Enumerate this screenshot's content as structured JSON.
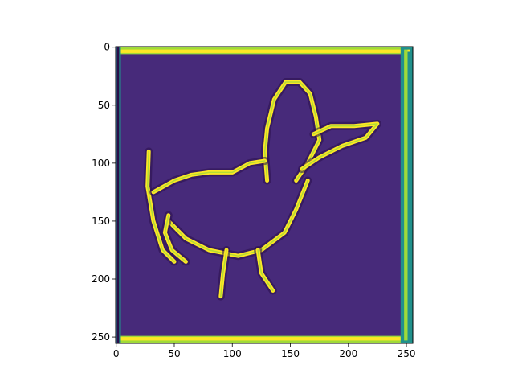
{
  "chart_data": {
    "type": "heatmap",
    "title": "",
    "xlabel": "",
    "ylabel": "",
    "xlim": [
      -0.5,
      255.5
    ],
    "ylim": [
      255.5,
      -0.5
    ],
    "xticks": [
      0,
      50,
      100,
      150,
      200,
      250
    ],
    "yticks": [
      0,
      50,
      100,
      150,
      200,
      250
    ],
    "colormap": "viridis",
    "colors": {
      "background": "#472a7a",
      "edge_high": "#fde725",
      "edge_mid": "#a0da39",
      "edge_teal": "#21918c",
      "edge_dark": "#2a0f4a"
    },
    "grid": false,
    "legend": "none",
    "description_strokes": [
      {
        "name": "head-and-neck",
        "points": [
          [
            130,
            115
          ],
          [
            128,
            90
          ],
          [
            130,
            70
          ],
          [
            136,
            45
          ],
          [
            146,
            30
          ],
          [
            158,
            30
          ],
          [
            167,
            40
          ],
          [
            172,
            60
          ],
          [
            175,
            80
          ],
          [
            165,
            100
          ],
          [
            155,
            115
          ]
        ]
      },
      {
        "name": "beak",
        "points": [
          [
            170,
            75
          ],
          [
            185,
            68
          ],
          [
            205,
            68
          ],
          [
            225,
            66
          ],
          [
            215,
            78
          ],
          [
            195,
            85
          ],
          [
            175,
            95
          ],
          [
            160,
            105
          ]
        ]
      },
      {
        "name": "tail-left",
        "points": [
          [
            28,
            90
          ],
          [
            27,
            120
          ],
          [
            32,
            150
          ],
          [
            40,
            175
          ],
          [
            50,
            185
          ]
        ]
      },
      {
        "name": "back-top",
        "points": [
          [
            32,
            125
          ],
          [
            50,
            115
          ],
          [
            65,
            110
          ],
          [
            80,
            108
          ],
          [
            100,
            108
          ],
          [
            115,
            100
          ],
          [
            128,
            98
          ]
        ]
      },
      {
        "name": "belly-inner",
        "points": [
          [
            45,
            150
          ],
          [
            60,
            165
          ],
          [
            80,
            175
          ],
          [
            105,
            180
          ],
          [
            125,
            175
          ],
          [
            145,
            160
          ],
          [
            155,
            140
          ],
          [
            165,
            115
          ]
        ]
      },
      {
        "name": "tail-inner",
        "points": [
          [
            45,
            145
          ],
          [
            42,
            160
          ],
          [
            48,
            175
          ],
          [
            60,
            185
          ]
        ]
      },
      {
        "name": "leg-left",
        "points": [
          [
            95,
            175
          ],
          [
            92,
            195
          ],
          [
            90,
            215
          ]
        ]
      },
      {
        "name": "leg-right",
        "points": [
          [
            122,
            175
          ],
          [
            125,
            195
          ],
          [
            135,
            210
          ]
        ]
      }
    ]
  }
}
